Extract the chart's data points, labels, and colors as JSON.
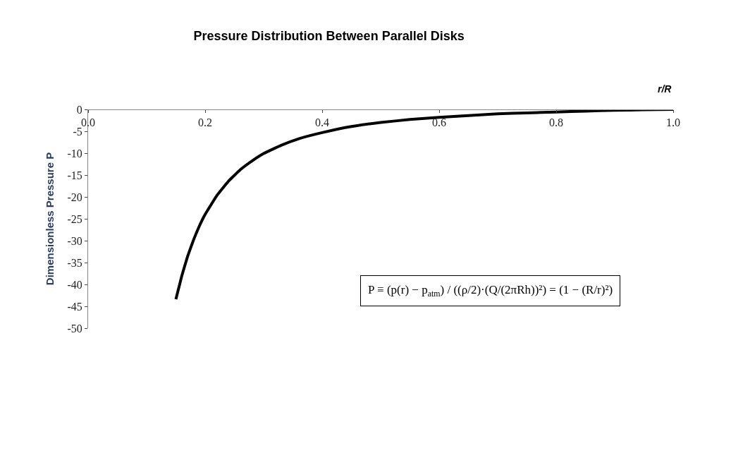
{
  "chart_data": {
    "type": "line",
    "title": "Pressure Distribution Between Parallel Disks",
    "xlabel": "r/R",
    "ylabel": "Dimensionless Pressure P",
    "x": [
      0.15,
      0.16,
      0.17,
      0.18,
      0.19,
      0.2,
      0.22,
      0.24,
      0.26,
      0.28,
      0.3,
      0.33,
      0.36,
      0.4,
      0.45,
      0.5,
      0.55,
      0.6,
      0.65,
      0.7,
      0.75,
      0.8,
      0.85,
      0.9,
      0.95,
      1.0
    ],
    "series": [
      {
        "color": "#000000",
        "values": [
          -43.4,
          -38.1,
          -33.6,
          -29.9,
          -26.7,
          -24.0,
          -19.7,
          -16.4,
          -13.8,
          -11.8,
          -10.1,
          -8.2,
          -6.7,
          -5.3,
          -3.9,
          -3.0,
          -2.3,
          -1.8,
          -1.4,
          -1.0,
          -0.8,
          -0.6,
          -0.4,
          -0.2,
          -0.1,
          0.0
        ]
      }
    ],
    "xlim": [
      0.0,
      1.0
    ],
    "xticks": [
      {
        "value": 0.0,
        "label": "0.0"
      },
      0.2,
      0.4,
      0.6,
      0.8,
      {
        "value": 1.0,
        "label": "1.0"
      }
    ],
    "ylim": [
      -50,
      0
    ],
    "yticks": [
      0,
      -5,
      -10,
      -15,
      -20,
      -25,
      -30,
      -35,
      -40,
      -45,
      -50
    ],
    "annotations": [
      "P ≡ (p(r) − p$_{atm}$) / ((ρ/2)·(Q/(2πRh))²) = (1 − (R/r)²)"
    ],
    "marker": "none",
    "line_style": "solid"
  }
}
